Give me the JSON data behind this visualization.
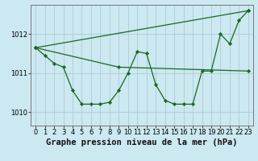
{
  "title": "Graphe pression niveau de la mer (hPa)",
  "bg_color": "#cce8f0",
  "grid_color": "#aaccd8",
  "line_color": "#1a6620",
  "xlim": [
    -0.5,
    23.5
  ],
  "ylim": [
    1009.65,
    1012.75
  ],
  "yticks": [
    1010,
    1011,
    1012
  ],
  "xticks": [
    0,
    1,
    2,
    3,
    4,
    5,
    6,
    7,
    8,
    9,
    10,
    11,
    12,
    13,
    14,
    15,
    16,
    17,
    18,
    19,
    20,
    21,
    22,
    23
  ],
  "line1_x": [
    0,
    1,
    2,
    3,
    4,
    5,
    6,
    7,
    8,
    9,
    10,
    11,
    12,
    13,
    14,
    15,
    16,
    17,
    18,
    19,
    20,
    21,
    22,
    23
  ],
  "line1_y": [
    1011.65,
    1011.45,
    1011.25,
    1011.15,
    1010.55,
    1010.2,
    1010.2,
    1010.2,
    1010.25,
    1010.55,
    1011.0,
    1011.55,
    1011.5,
    1010.7,
    1010.3,
    1010.2,
    1010.2,
    1010.2,
    1011.05,
    1011.05,
    1012.0,
    1011.75,
    1012.35,
    1012.6
  ],
  "line2_x": [
    0,
    23
  ],
  "line2_y": [
    1011.65,
    1012.6
  ],
  "line3_x": [
    0,
    9,
    23
  ],
  "line3_y": [
    1011.65,
    1011.15,
    1011.05
  ],
  "title_fontsize": 7.5,
  "tick_fontsize": 6,
  "figsize": [
    3.2,
    2.0
  ],
  "dpi": 100
}
